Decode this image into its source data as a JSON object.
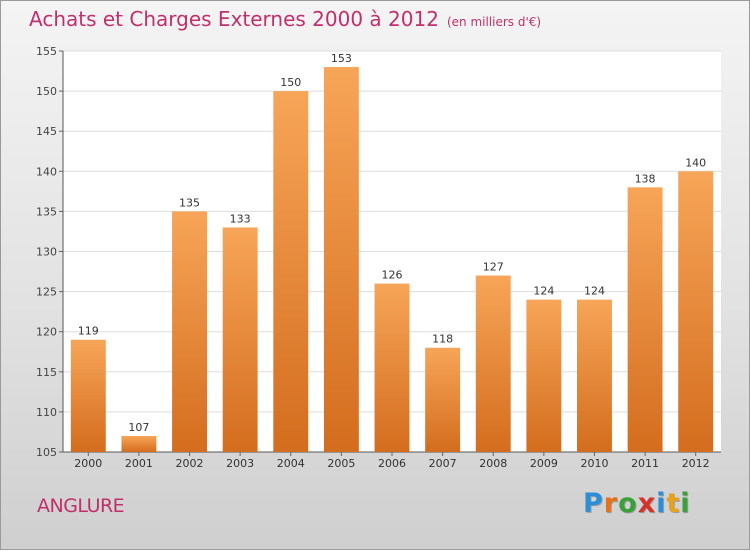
{
  "header": {
    "title": "Achats et Charges Externes 2000 à 2012",
    "subtitle": "(en milliers d'€)"
  },
  "footer": {
    "city": "ANGLURE",
    "brand_letters": [
      "P",
      "r",
      "o",
      "x",
      "i",
      "t",
      "i"
    ],
    "brand_colors": [
      "#2a8fd6",
      "#e8701a",
      "#3aa13a",
      "#d6322a",
      "#2a8fd6",
      "#e8a11a",
      "#3aa13a"
    ]
  },
  "colors": {
    "title": "#c0306a",
    "bar_top": "#f7a558",
    "bar_bottom": "#d46d1e",
    "plot_background": "#ffffff",
    "grid": "#dddddd"
  },
  "chart_data": {
    "type": "bar",
    "categories": [
      "2000",
      "2001",
      "2002",
      "2003",
      "2004",
      "2005",
      "2006",
      "2007",
      "2008",
      "2009",
      "2010",
      "2011",
      "2012"
    ],
    "values": [
      119,
      107,
      135,
      133,
      150,
      153,
      126,
      118,
      127,
      124,
      124,
      138,
      140
    ],
    "ylim": [
      105,
      155
    ],
    "yticks": [
      105,
      110,
      115,
      120,
      125,
      130,
      135,
      140,
      145,
      150,
      155
    ],
    "grid": true,
    "data_labels": true
  }
}
